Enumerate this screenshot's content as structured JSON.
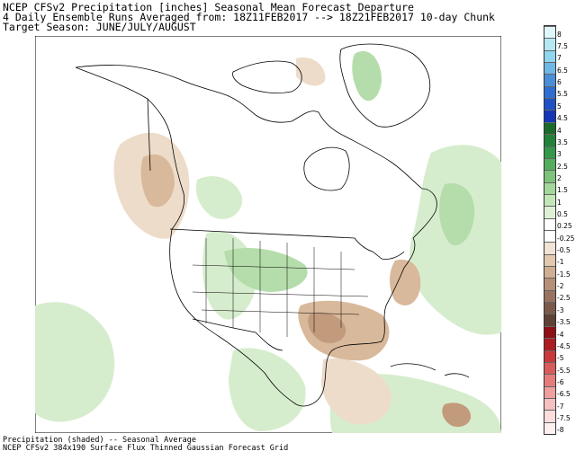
{
  "header": {
    "line1": "NCEP CFSv2 Precipitation [inches] Seasonal Mean Forecast Departure",
    "line2": "4 Daily Ensemble Runs Averaged from: 18Z11FEB2017 --> 18Z21FEB2017 10-day Chunk",
    "line3": "Target Season: JUNE/JULY/AUGUST"
  },
  "footer": {
    "line1": "Precipitation (shaded) -- Seasonal Average",
    "line2": "NCEP CFSv2 384x190 Surface Flux Thinned Gaussian Forecast Grid"
  },
  "legend": {
    "items": [
      {
        "label": "8",
        "color": "#dff6fb"
      },
      {
        "label": "7.5",
        "color": "#b6e8f3"
      },
      {
        "label": "7",
        "color": "#8fd6ee"
      },
      {
        "label": "6.5",
        "color": "#6fb8e6"
      },
      {
        "label": "6",
        "color": "#4a8ed8"
      },
      {
        "label": "5.5",
        "color": "#2f6ed0"
      },
      {
        "label": "5",
        "color": "#1e52c4"
      },
      {
        "label": "4.5",
        "color": "#1436b6"
      },
      {
        "label": "4",
        "color": "#1a6a2c"
      },
      {
        "label": "3.5",
        "color": "#24813a"
      },
      {
        "label": "3",
        "color": "#35974a"
      },
      {
        "label": "2.5",
        "color": "#55ad5f"
      },
      {
        "label": "2",
        "color": "#7cc27b"
      },
      {
        "label": "1.5",
        "color": "#a3d79b"
      },
      {
        "label": "1",
        "color": "#c3e6b9"
      },
      {
        "label": "0.5",
        "color": "#def1d6"
      },
      {
        "label": "0.25",
        "color": "#ffffff"
      },
      {
        "label": "-0.25",
        "color": "#ffffff"
      },
      {
        "label": "-0.5",
        "color": "#f1e3d5"
      },
      {
        "label": "-1",
        "color": "#e3c8b0"
      },
      {
        "label": "-1.5",
        "color": "#cfae93"
      },
      {
        "label": "-2",
        "color": "#b58f76"
      },
      {
        "label": "-2.5",
        "color": "#997360"
      },
      {
        "label": "-3",
        "color": "#7b5a49"
      },
      {
        "label": "-3.5",
        "color": "#5e4236"
      },
      {
        "label": "-4",
        "color": "#8e0f14"
      },
      {
        "label": "-4.5",
        "color": "#ad1c20"
      },
      {
        "label": "-5",
        "color": "#c7393b"
      },
      {
        "label": "-5.5",
        "color": "#d85b5b"
      },
      {
        "label": "-6",
        "color": "#e57c7c"
      },
      {
        "label": "-6.5",
        "color": "#ef9f9f"
      },
      {
        "label": "-7",
        "color": "#f6c0c0"
      },
      {
        "label": "-7.5",
        "color": "#fbdddd"
      },
      {
        "label": "-8",
        "color": "#fff0f0"
      }
    ]
  },
  "map": {
    "colors": {
      "wet_light": "#d6edcd",
      "wet": "#b5ddab",
      "dry_light": "#eddcc9",
      "dry": "#d9b99b",
      "dry_strong": "#c29a7c",
      "border": "#000000"
    }
  }
}
